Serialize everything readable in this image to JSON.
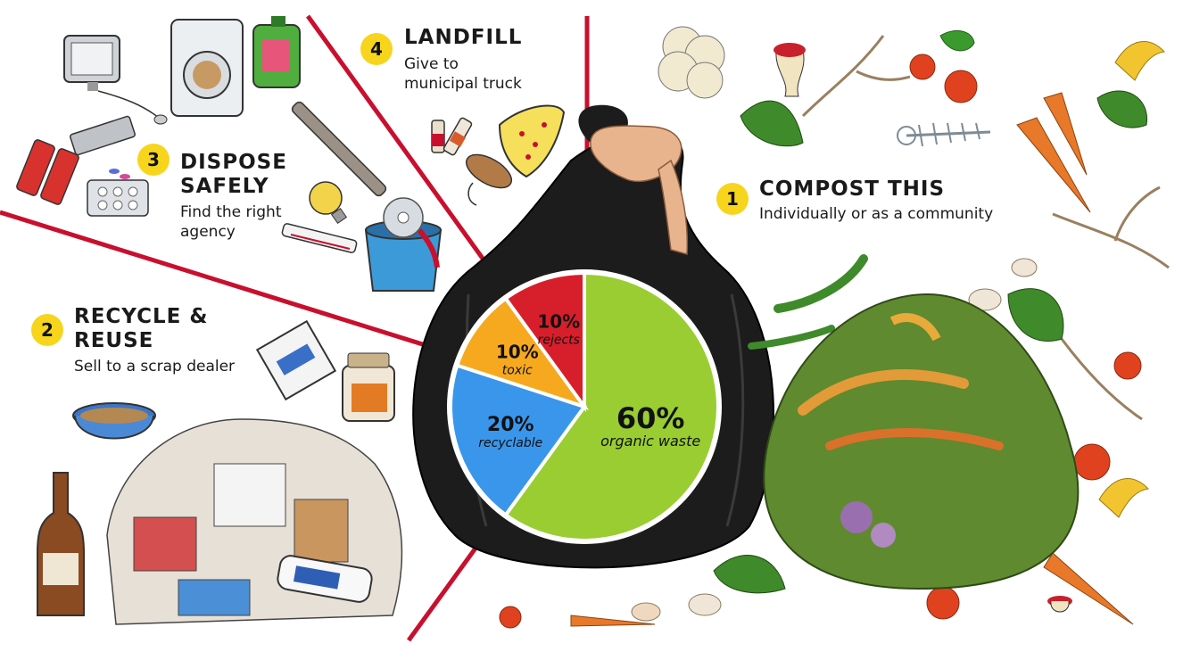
{
  "colors": {
    "divider": "#c8102e",
    "badge": "#f7d51d",
    "organic": "#9acd32",
    "recyclable": "#3a96ea",
    "toxic": "#f6a91f",
    "rejects": "#d71f2c",
    "bag": "#1c1c1c"
  },
  "sections": [
    {
      "number": "1",
      "title": "COMPOST  THIS",
      "subtitle": "Individually or as a community"
    },
    {
      "number": "2",
      "title": "RECYCLE  &\nREUSE",
      "subtitle": "Sell to a scrap dealer"
    },
    {
      "number": "3",
      "title": "DISPOSE\nSAFELY",
      "subtitle": "Find the right\nagency"
    },
    {
      "number": "4",
      "title": "LANDFILL",
      "subtitle": "Give to\nmunicipal truck"
    }
  ],
  "chart_data": {
    "type": "pie",
    "slices": [
      {
        "label": "organic waste",
        "value": 60,
        "display": "60%",
        "color": "#9acd32"
      },
      {
        "label": "recyclable",
        "value": 20,
        "display": "20%",
        "color": "#3a96ea"
      },
      {
        "label": "toxic",
        "value": 10,
        "display": "10%",
        "color": "#f6a91f"
      },
      {
        "label": "rejects",
        "value": 10,
        "display": "10%",
        "color": "#d71f2c"
      }
    ]
  },
  "icons": {
    "compost": [
      "cauliflower-icon",
      "apple-core-icon",
      "tomato-icon",
      "carrot-icon",
      "fish-bone-icon",
      "banana-peel-icon",
      "eggshell-icon",
      "green-chili-icon",
      "compost-pile-icon"
    ],
    "recycle": [
      "cooking-pot-icon",
      "bottle-icon",
      "jar-icon",
      "milk-carton-icon",
      "plastic-bag-icon",
      "cardboard-box-icon",
      "detergent-bottle-icon",
      "scrap-pile-icon"
    ],
    "dispose": [
      "computer-icon",
      "keyboard-icon",
      "washing-machine-icon",
      "chemical-jug-icon",
      "tube-light-icon",
      "battery-icon",
      "pill-blister-icon",
      "light-bulb-icon",
      "thermometer-icon",
      "paint-bucket-icon",
      "cd-icon"
    ],
    "landfill": [
      "syringe-icon",
      "medicine-vial-icon",
      "diaper-icon",
      "dead-rat-icon"
    ]
  }
}
